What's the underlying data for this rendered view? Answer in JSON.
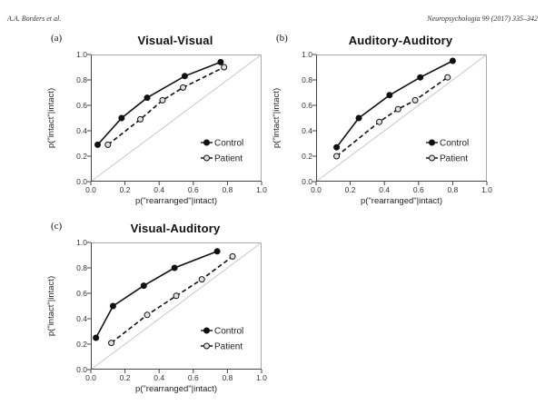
{
  "page": {
    "header_left": "A.A. Borders et al.",
    "header_right": "Neuropsychologia 99 (2017) 335–342"
  },
  "colors": {
    "line": "#111111",
    "axis": "#444444",
    "frame": "#aaaaaa",
    "diagonal": "#c8c8c8",
    "patient_marker_fill": "#e0e0e0",
    "text": "#222222"
  },
  "chart_data": [
    {
      "id": "a",
      "panel_label": "(a)",
      "type": "line",
      "title": "Visual-Visual",
      "xlabel": "p(\"rearranged\"|intact)",
      "ylabel": "p(\"intact\"|intact)",
      "xlim": [
        0,
        1
      ],
      "ylim": [
        0,
        1
      ],
      "xticks": [
        "0.0",
        "0.2",
        "0.4",
        "0.6",
        "0.8",
        "1.0"
      ],
      "yticks": [
        "0.0",
        "0.2",
        "0.4",
        "0.6",
        "0.8",
        "1.0"
      ],
      "grid": false,
      "diagonal_reference": true,
      "legend_position": "lower-right",
      "series": [
        {
          "name": "Control",
          "line_style": "solid",
          "marker": "filled-circle",
          "points": [
            [
              0.04,
              0.29
            ],
            [
              0.18,
              0.5
            ],
            [
              0.33,
              0.66
            ],
            [
              0.55,
              0.83
            ],
            [
              0.76,
              0.94
            ]
          ]
        },
        {
          "name": "Patient",
          "line_style": "dashed",
          "marker": "open-circle",
          "points": [
            [
              0.1,
              0.29
            ],
            [
              0.29,
              0.49
            ],
            [
              0.42,
              0.64
            ],
            [
              0.54,
              0.74
            ],
            [
              0.78,
              0.9
            ]
          ]
        }
      ]
    },
    {
      "id": "b",
      "panel_label": "(b)",
      "type": "line",
      "title": "Auditory-Auditory",
      "xlabel": "p(\"rearranged\"|intact)",
      "ylabel": "p(\"intact\"|intact)",
      "xlim": [
        0,
        1
      ],
      "ylim": [
        0,
        1
      ],
      "xticks": [
        "0.0",
        "0.2",
        "0.4",
        "0.6",
        "0.8",
        "1.0"
      ],
      "yticks": [
        "0.0",
        "0.2",
        "0.4",
        "0.6",
        "0.8",
        "1.0"
      ],
      "grid": false,
      "diagonal_reference": true,
      "legend_position": "lower-right",
      "series": [
        {
          "name": "Control",
          "line_style": "solid",
          "marker": "filled-circle",
          "points": [
            [
              0.12,
              0.27
            ],
            [
              0.25,
              0.5
            ],
            [
              0.43,
              0.68
            ],
            [
              0.61,
              0.82
            ],
            [
              0.8,
              0.95
            ]
          ]
        },
        {
          "name": "Patient",
          "line_style": "dashed",
          "marker": "open-circle",
          "points": [
            [
              0.12,
              0.2
            ],
            [
              0.37,
              0.47
            ],
            [
              0.48,
              0.57
            ],
            [
              0.58,
              0.64
            ],
            [
              0.77,
              0.82
            ]
          ]
        }
      ]
    },
    {
      "id": "c",
      "panel_label": "(c)",
      "type": "line",
      "title": "Visual-Auditory",
      "xlabel": "p(\"rearranged\"|intact)",
      "ylabel": "p(\"intact\"|intact)",
      "xlim": [
        0,
        1
      ],
      "ylim": [
        0,
        1
      ],
      "xticks": [
        "0.0",
        "0.2",
        "0.4",
        "0.6",
        "0.8",
        "1.0"
      ],
      "yticks": [
        "0.0",
        "0.2",
        "0.4",
        "0.6",
        "0.8",
        "1.0"
      ],
      "grid": false,
      "diagonal_reference": true,
      "legend_position": "lower-right",
      "series": [
        {
          "name": "Control",
          "line_style": "solid",
          "marker": "filled-circle",
          "points": [
            [
              0.03,
              0.25
            ],
            [
              0.13,
              0.5
            ],
            [
              0.31,
              0.66
            ],
            [
              0.49,
              0.8
            ],
            [
              0.74,
              0.93
            ]
          ]
        },
        {
          "name": "Patient",
          "line_style": "dashed",
          "marker": "open-circle",
          "points": [
            [
              0.12,
              0.21
            ],
            [
              0.33,
              0.43
            ],
            [
              0.5,
              0.58
            ],
            [
              0.65,
              0.71
            ],
            [
              0.83,
              0.89
            ]
          ]
        }
      ]
    }
  ]
}
